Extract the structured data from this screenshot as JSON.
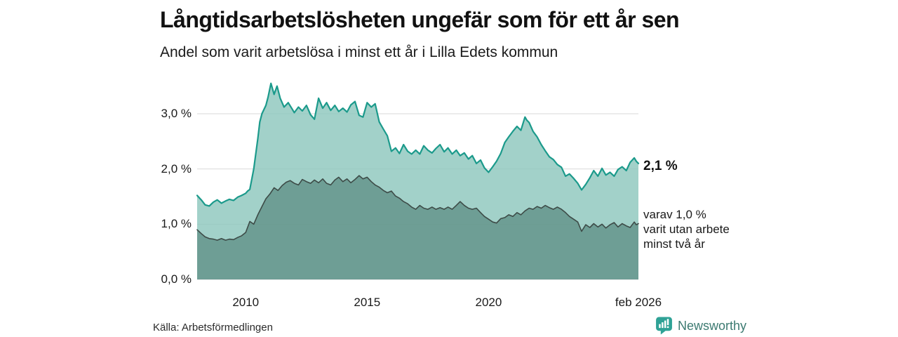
{
  "header": {
    "title": "Långtidsarbetslösheten ungefär som för ett år sen",
    "subtitle": "Andel som varit arbetslösa i minst ett år i Lilla Edets kommun"
  },
  "chart_data": {
    "type": "area",
    "title": "Långtidsarbetslösheten ungefär som för ett år sen",
    "subtitle": "Andel som varit arbetslösa i minst ett år i Lilla Edets kommun",
    "unit": "%",
    "grid": true,
    "grid_color": "#d9d9d9",
    "legend_position": "none",
    "x_range": [
      2008.0,
      2026.17
    ],
    "y_range": [
      0,
      3.8
    ],
    "yticks": [
      {
        "value": 0,
        "label": "0,0 %"
      },
      {
        "value": 1,
        "label": "1,0 %"
      },
      {
        "value": 2,
        "label": "2,0 %"
      },
      {
        "value": 3,
        "label": "3,0 %"
      }
    ],
    "xticks": [
      {
        "value": 2010,
        "label": "2010"
      },
      {
        "value": 2015,
        "label": "2015"
      },
      {
        "value": 2020,
        "label": "2020"
      },
      {
        "value": 2026.17,
        "label": "feb 2026"
      }
    ],
    "annotations": {
      "total_end_label": "2,1 %",
      "two_year_note_lines": [
        "varav 1,0 %",
        "varit utan arbete",
        "minst två år"
      ]
    },
    "series": [
      {
        "name": "Arbetslösa minst ett år (totalt)",
        "color": "#1b9a8b",
        "fill": "rgba(141,199,189,0.82)",
        "stroke_width": 2.2,
        "end_value": 2.1,
        "points": [
          [
            2008.0,
            1.52
          ],
          [
            2008.17,
            1.44
          ],
          [
            2008.33,
            1.35
          ],
          [
            2008.5,
            1.33
          ],
          [
            2008.67,
            1.4
          ],
          [
            2008.83,
            1.44
          ],
          [
            2009.0,
            1.38
          ],
          [
            2009.17,
            1.42
          ],
          [
            2009.33,
            1.45
          ],
          [
            2009.5,
            1.43
          ],
          [
            2009.67,
            1.49
          ],
          [
            2009.83,
            1.52
          ],
          [
            2010.0,
            1.56
          ],
          [
            2010.08,
            1.6
          ],
          [
            2010.17,
            1.63
          ],
          [
            2010.33,
            2.0
          ],
          [
            2010.5,
            2.55
          ],
          [
            2010.58,
            2.85
          ],
          [
            2010.67,
            3.0
          ],
          [
            2010.83,
            3.15
          ],
          [
            2010.92,
            3.3
          ],
          [
            2011.04,
            3.55
          ],
          [
            2011.17,
            3.35
          ],
          [
            2011.29,
            3.5
          ],
          [
            2011.42,
            3.28
          ],
          [
            2011.58,
            3.12
          ],
          [
            2011.75,
            3.2
          ],
          [
            2011.92,
            3.08
          ],
          [
            2012.0,
            3.02
          ],
          [
            2012.17,
            3.12
          ],
          [
            2012.33,
            3.05
          ],
          [
            2012.5,
            3.15
          ],
          [
            2012.67,
            2.98
          ],
          [
            2012.83,
            2.9
          ],
          [
            2013.0,
            3.28
          ],
          [
            2013.17,
            3.1
          ],
          [
            2013.33,
            3.2
          ],
          [
            2013.5,
            3.06
          ],
          [
            2013.67,
            3.15
          ],
          [
            2013.83,
            3.04
          ],
          [
            2014.0,
            3.1
          ],
          [
            2014.17,
            3.03
          ],
          [
            2014.33,
            3.16
          ],
          [
            2014.5,
            3.22
          ],
          [
            2014.67,
            2.97
          ],
          [
            2014.83,
            2.94
          ],
          [
            2015.0,
            3.2
          ],
          [
            2015.17,
            3.12
          ],
          [
            2015.33,
            3.18
          ],
          [
            2015.5,
            2.85
          ],
          [
            2015.67,
            2.72
          ],
          [
            2015.83,
            2.6
          ],
          [
            2016.0,
            2.32
          ],
          [
            2016.17,
            2.38
          ],
          [
            2016.33,
            2.28
          ],
          [
            2016.5,
            2.44
          ],
          [
            2016.67,
            2.32
          ],
          [
            2016.83,
            2.27
          ],
          [
            2017.0,
            2.34
          ],
          [
            2017.17,
            2.27
          ],
          [
            2017.33,
            2.42
          ],
          [
            2017.5,
            2.34
          ],
          [
            2017.67,
            2.29
          ],
          [
            2017.83,
            2.37
          ],
          [
            2018.0,
            2.44
          ],
          [
            2018.17,
            2.31
          ],
          [
            2018.33,
            2.38
          ],
          [
            2018.5,
            2.27
          ],
          [
            2018.67,
            2.34
          ],
          [
            2018.83,
            2.24
          ],
          [
            2019.0,
            2.29
          ],
          [
            2019.17,
            2.18
          ],
          [
            2019.33,
            2.24
          ],
          [
            2019.5,
            2.1
          ],
          [
            2019.67,
            2.16
          ],
          [
            2019.83,
            2.02
          ],
          [
            2020.0,
            1.94
          ],
          [
            2020.17,
            2.04
          ],
          [
            2020.33,
            2.14
          ],
          [
            2020.5,
            2.28
          ],
          [
            2020.67,
            2.48
          ],
          [
            2020.83,
            2.58
          ],
          [
            2021.0,
            2.68
          ],
          [
            2021.17,
            2.77
          ],
          [
            2021.33,
            2.7
          ],
          [
            2021.5,
            2.94
          ],
          [
            2021.58,
            2.88
          ],
          [
            2021.67,
            2.84
          ],
          [
            2021.83,
            2.68
          ],
          [
            2022.0,
            2.58
          ],
          [
            2022.17,
            2.44
          ],
          [
            2022.33,
            2.33
          ],
          [
            2022.5,
            2.22
          ],
          [
            2022.67,
            2.17
          ],
          [
            2022.83,
            2.08
          ],
          [
            2023.0,
            2.03
          ],
          [
            2023.17,
            1.87
          ],
          [
            2023.33,
            1.91
          ],
          [
            2023.5,
            1.83
          ],
          [
            2023.67,
            1.74
          ],
          [
            2023.83,
            1.62
          ],
          [
            2024.0,
            1.72
          ],
          [
            2024.17,
            1.84
          ],
          [
            2024.33,
            1.97
          ],
          [
            2024.5,
            1.87
          ],
          [
            2024.67,
            2.01
          ],
          [
            2024.83,
            1.89
          ],
          [
            2025.0,
            1.94
          ],
          [
            2025.17,
            1.87
          ],
          [
            2025.33,
            1.99
          ],
          [
            2025.5,
            2.04
          ],
          [
            2025.67,
            1.97
          ],
          [
            2025.83,
            2.12
          ],
          [
            2026.0,
            2.2
          ],
          [
            2026.08,
            2.14
          ],
          [
            2026.17,
            2.1
          ]
        ]
      },
      {
        "name": "varav utan arbete minst två år",
        "color": "#3d4b47",
        "fill": "rgba(64,112,102,0.52)",
        "stroke_width": 1.6,
        "end_value": 1.0,
        "points": [
          [
            2008.0,
            0.9
          ],
          [
            2008.17,
            0.83
          ],
          [
            2008.33,
            0.77
          ],
          [
            2008.5,
            0.74
          ],
          [
            2008.67,
            0.73
          ],
          [
            2008.83,
            0.71
          ],
          [
            2009.0,
            0.74
          ],
          [
            2009.17,
            0.71
          ],
          [
            2009.33,
            0.73
          ],
          [
            2009.5,
            0.72
          ],
          [
            2009.67,
            0.76
          ],
          [
            2009.83,
            0.79
          ],
          [
            2010.0,
            0.85
          ],
          [
            2010.17,
            1.05
          ],
          [
            2010.33,
            1.0
          ],
          [
            2010.5,
            1.17
          ],
          [
            2010.67,
            1.32
          ],
          [
            2010.83,
            1.46
          ],
          [
            2011.0,
            1.55
          ],
          [
            2011.17,
            1.66
          ],
          [
            2011.33,
            1.61
          ],
          [
            2011.5,
            1.7
          ],
          [
            2011.67,
            1.76
          ],
          [
            2011.83,
            1.79
          ],
          [
            2012.0,
            1.74
          ],
          [
            2012.17,
            1.71
          ],
          [
            2012.33,
            1.81
          ],
          [
            2012.5,
            1.77
          ],
          [
            2012.67,
            1.74
          ],
          [
            2012.83,
            1.8
          ],
          [
            2013.0,
            1.75
          ],
          [
            2013.17,
            1.82
          ],
          [
            2013.33,
            1.74
          ],
          [
            2013.5,
            1.71
          ],
          [
            2013.67,
            1.8
          ],
          [
            2013.83,
            1.85
          ],
          [
            2014.0,
            1.77
          ],
          [
            2014.17,
            1.82
          ],
          [
            2014.33,
            1.75
          ],
          [
            2014.5,
            1.81
          ],
          [
            2014.67,
            1.88
          ],
          [
            2014.83,
            1.82
          ],
          [
            2015.0,
            1.85
          ],
          [
            2015.17,
            1.77
          ],
          [
            2015.33,
            1.71
          ],
          [
            2015.5,
            1.67
          ],
          [
            2015.67,
            1.61
          ],
          [
            2015.83,
            1.57
          ],
          [
            2016.0,
            1.6
          ],
          [
            2016.17,
            1.51
          ],
          [
            2016.33,
            1.47
          ],
          [
            2016.5,
            1.41
          ],
          [
            2016.67,
            1.37
          ],
          [
            2016.83,
            1.31
          ],
          [
            2017.0,
            1.27
          ],
          [
            2017.17,
            1.34
          ],
          [
            2017.33,
            1.29
          ],
          [
            2017.5,
            1.27
          ],
          [
            2017.67,
            1.31
          ],
          [
            2017.83,
            1.27
          ],
          [
            2018.0,
            1.3
          ],
          [
            2018.17,
            1.27
          ],
          [
            2018.33,
            1.31
          ],
          [
            2018.5,
            1.27
          ],
          [
            2018.67,
            1.34
          ],
          [
            2018.83,
            1.41
          ],
          [
            2019.0,
            1.34
          ],
          [
            2019.17,
            1.29
          ],
          [
            2019.33,
            1.27
          ],
          [
            2019.5,
            1.29
          ],
          [
            2019.67,
            1.21
          ],
          [
            2019.83,
            1.14
          ],
          [
            2020.0,
            1.09
          ],
          [
            2020.17,
            1.04
          ],
          [
            2020.33,
            1.02
          ],
          [
            2020.5,
            1.1
          ],
          [
            2020.67,
            1.12
          ],
          [
            2020.83,
            1.17
          ],
          [
            2021.0,
            1.14
          ],
          [
            2021.17,
            1.21
          ],
          [
            2021.33,
            1.17
          ],
          [
            2021.5,
            1.24
          ],
          [
            2021.67,
            1.29
          ],
          [
            2021.83,
            1.27
          ],
          [
            2022.0,
            1.32
          ],
          [
            2022.17,
            1.29
          ],
          [
            2022.33,
            1.34
          ],
          [
            2022.5,
            1.3
          ],
          [
            2022.67,
            1.27
          ],
          [
            2022.83,
            1.31
          ],
          [
            2023.0,
            1.27
          ],
          [
            2023.17,
            1.21
          ],
          [
            2023.33,
            1.14
          ],
          [
            2023.5,
            1.09
          ],
          [
            2023.67,
            1.04
          ],
          [
            2023.83,
            0.87
          ],
          [
            2024.0,
            0.99
          ],
          [
            2024.17,
            0.94
          ],
          [
            2024.33,
            1.01
          ],
          [
            2024.5,
            0.95
          ],
          [
            2024.67,
            1.0
          ],
          [
            2024.83,
            0.93
          ],
          [
            2025.0,
            0.99
          ],
          [
            2025.17,
            1.03
          ],
          [
            2025.33,
            0.95
          ],
          [
            2025.5,
            1.01
          ],
          [
            2025.67,
            0.97
          ],
          [
            2025.83,
            0.94
          ],
          [
            2026.0,
            1.04
          ],
          [
            2026.08,
            0.99
          ],
          [
            2026.17,
            1.01
          ]
        ]
      }
    ]
  },
  "footer": {
    "source": "Källa: Arbetsförmedlingen",
    "brand": "Newsworthy",
    "brand_text_color": "#3c7a71",
    "brand_icon_color": "#2fa296"
  }
}
